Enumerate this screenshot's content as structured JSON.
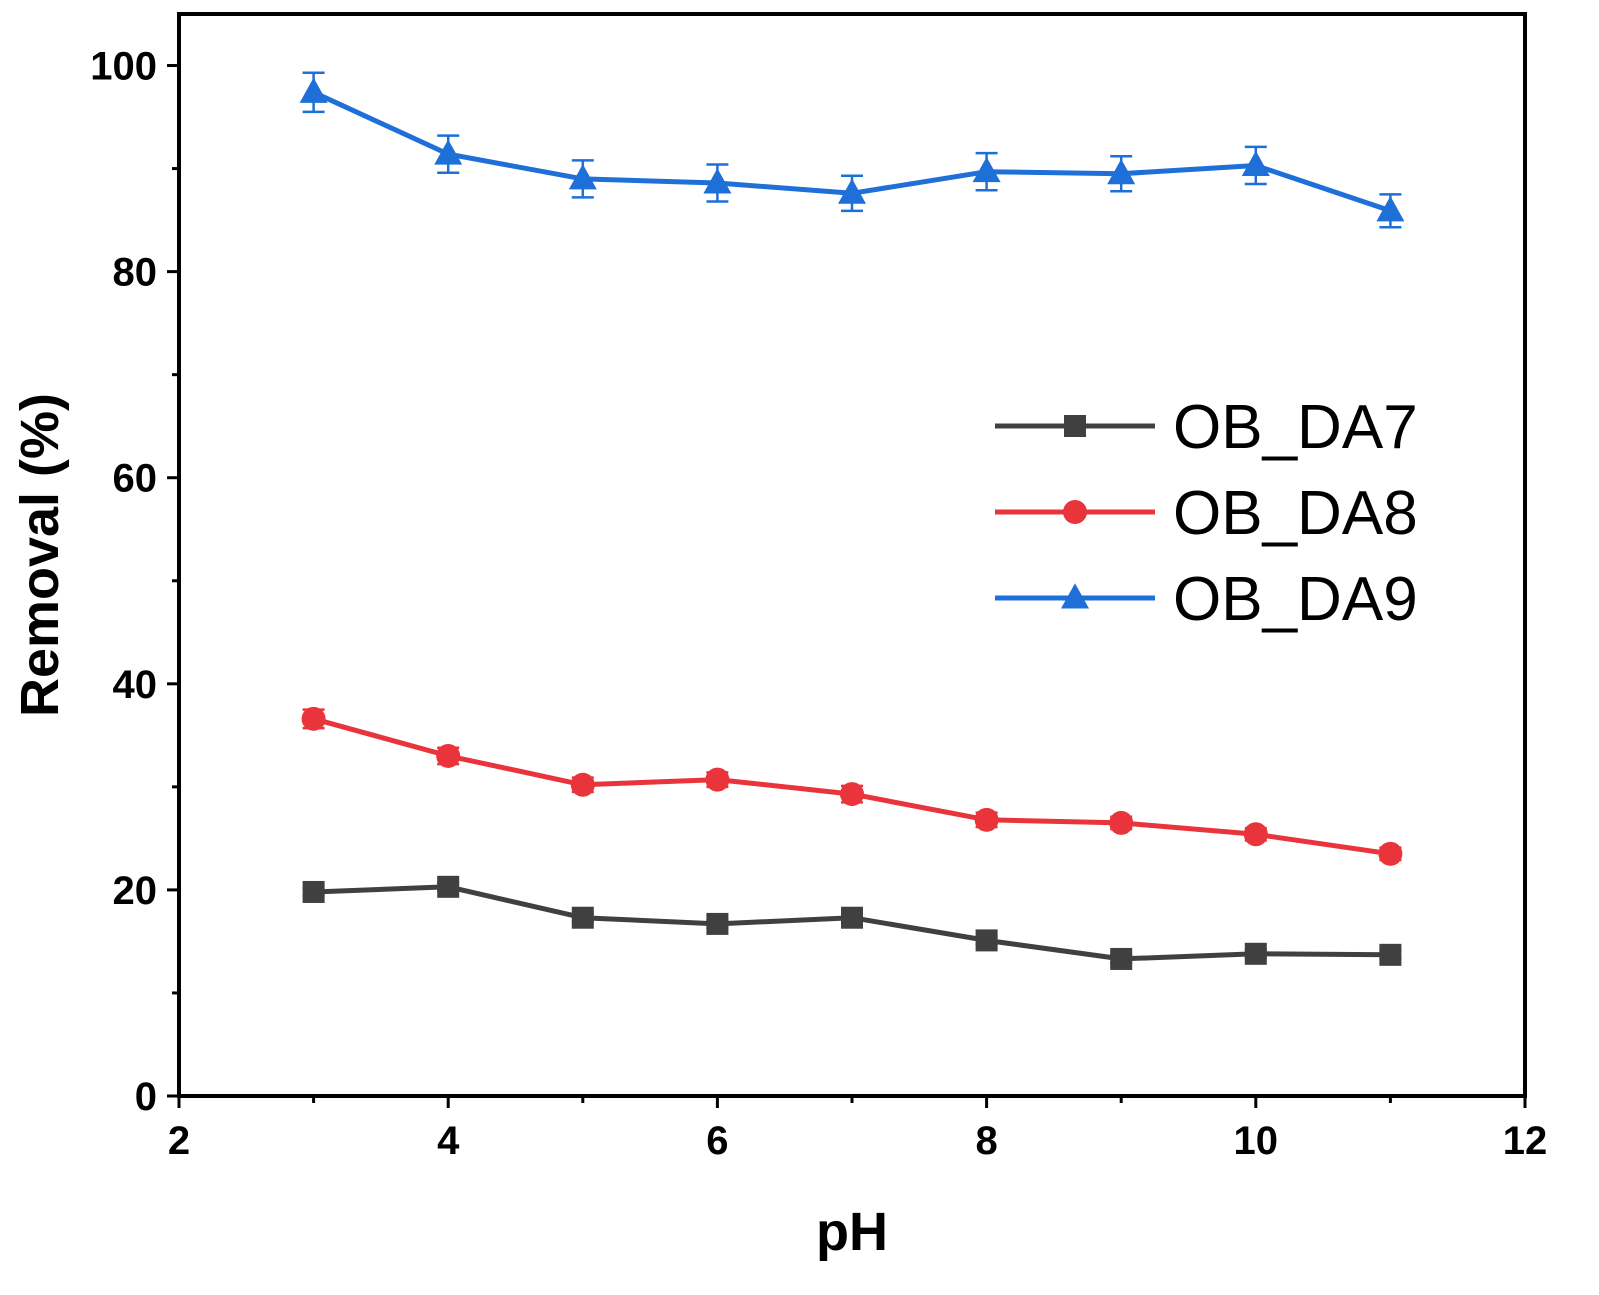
{
  "chart_data": {
    "type": "line",
    "title": "",
    "xlabel": "pH",
    "ylabel": "Removal (%)",
    "xlim": [
      2,
      12
    ],
    "ylim": [
      0,
      105
    ],
    "x_ticks": [
      2,
      4,
      6,
      8,
      10,
      12
    ],
    "x_minor_ticks": [
      3,
      5,
      7,
      9,
      11
    ],
    "y_ticks": [
      0,
      20,
      40,
      60,
      80,
      100
    ],
    "y_minor_ticks": [
      10,
      30,
      50,
      70,
      90
    ],
    "grid": false,
    "legend_position": "center-right",
    "x": [
      3,
      4,
      5,
      6,
      7,
      8,
      9,
      10,
      11
    ],
    "series": [
      {
        "name": "OB_DA7",
        "color": "#404040",
        "marker": "square",
        "values": [
          19.8,
          20.3,
          17.3,
          16.7,
          17.3,
          15.1,
          13.3,
          13.8,
          13.7
        ],
        "errors": [
          0.4,
          0.4,
          0.4,
          0.4,
          0.4,
          0.4,
          0.4,
          0.4,
          0.4
        ]
      },
      {
        "name": "OB_DA8",
        "color": "#e8343a",
        "marker": "circle",
        "values": [
          36.6,
          33.0,
          30.2,
          30.7,
          29.3,
          26.8,
          26.5,
          25.4,
          23.5
        ],
        "errors": [
          0.9,
          0.8,
          0.7,
          0.7,
          0.8,
          0.7,
          0.6,
          0.6,
          0.6
        ]
      },
      {
        "name": "OB_DA9",
        "color": "#1f6fd9",
        "marker": "triangle",
        "values": [
          97.4,
          91.4,
          89.0,
          88.6,
          87.6,
          89.7,
          89.5,
          90.3,
          85.9
        ],
        "errors": [
          1.9,
          1.8,
          1.8,
          1.8,
          1.7,
          1.8,
          1.7,
          1.8,
          1.6
        ]
      }
    ]
  }
}
